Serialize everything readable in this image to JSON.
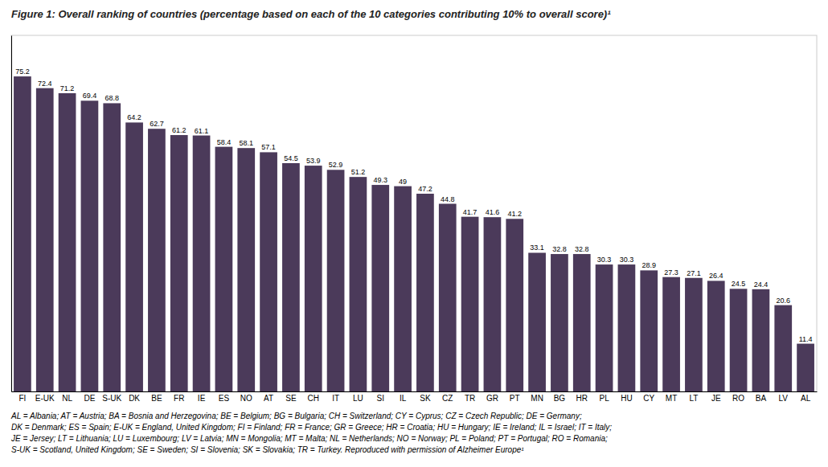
{
  "chart_data": {
    "type": "bar",
    "title": "Figure 1: Overall ranking of countries (percentage based on each of the 10 categories contributing 10% to overall score)¹",
    "categories": [
      "FI",
      "E-UK",
      "NL",
      "DE",
      "S-UK",
      "DK",
      "BE",
      "FR",
      "IE",
      "ES",
      "NO",
      "AT",
      "SE",
      "CH",
      "IT",
      "LU",
      "SI",
      "IL",
      "SK",
      "CZ",
      "TR",
      "GR",
      "PT",
      "MN",
      "BG",
      "HR",
      "PL",
      "HU",
      "CY",
      "MT",
      "LT",
      "JE",
      "RO",
      "BA",
      "LV",
      "AL"
    ],
    "values": [
      75.2,
      72.4,
      71.2,
      69.4,
      68.8,
      64.2,
      62.7,
      61.2,
      61.1,
      58.4,
      58.1,
      57.1,
      54.5,
      53.9,
      52.9,
      51.2,
      49.3,
      49.0,
      47.2,
      44.8,
      41.7,
      41.6,
      41.2,
      33.1,
      32.8,
      32.8,
      30.3,
      30.3,
      28.9,
      27.3,
      27.1,
      26.4,
      24.5,
      24.4,
      20.6,
      11.4
    ],
    "color": "#4b3a5a",
    "ylim": [
      0,
      85
    ],
    "data_labels": true,
    "tick_labels": "x",
    "annotations": [
      "AL = Albania; AT = Austria; BA = Bosnia and Herzegovina; BE = Belgium; BG = Bulgaria; CH = Switzerland; CY = Cyprus; CZ = Czech Republic; DE = Germany;",
      "DK = Denmark; ES = Spain; E-UK = England, United Kingdom; FI = Finland; FR = France; GR = Greece; HR = Croatia; HU = Hungary; IE = Ireland; IL = Israel; IT = Italy;",
      "JE = Jersey; LT = Lithuania; LU = Luxembourg; LV = Latvia; MN = Mongolia; MT = Malta; NL = Netherlands; NO = Norway; PL = Poland; PT = Portugal; RO = Romania;",
      "S-UK = Scotland, United Kingdom; SE = Sweden; SI = Slovenia; SK = Slovakia; TR = Turkey. Reproduced with permission of Alzheimer Europe¹"
    ]
  }
}
